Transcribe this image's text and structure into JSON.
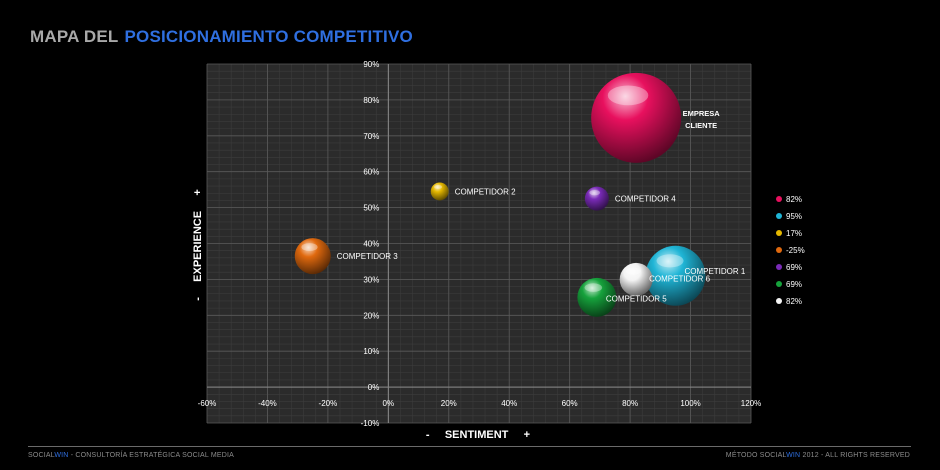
{
  "header": {
    "title_part1": "MAPA DEL",
    "title_part2": "POSICIONAMIENTO COMPETITIVO"
  },
  "footer": {
    "left_brand_a": "SOCIAL",
    "left_brand_b": "WIN",
    "left_text": " - CONSULTORÍA ESTRATÉGICA SOCIAL MEDIA",
    "right_text": "MÉTODO ",
    "right_brand_a": "SOCIAL",
    "right_brand_b": "WIN",
    "right_suffix": " 2012 - ALL RIGHTS RESERVED"
  },
  "chart_data": {
    "type": "scatter",
    "xlabel": "-     SENTIMENT     +",
    "ylabel": "-     EXPERIENCE     +",
    "xlim": [
      -60,
      120
    ],
    "ylim": [
      -10,
      90
    ],
    "x_ticks": [
      -60,
      -40,
      -20,
      0,
      20,
      40,
      60,
      80,
      100,
      120
    ],
    "y_ticks": [
      -10,
      0,
      10,
      20,
      30,
      40,
      50,
      60,
      70,
      80,
      90
    ],
    "x_tick_labels": [
      "-60%",
      "-40%",
      "-20%",
      "0%",
      "20%",
      "40%",
      "60%",
      "80%",
      "100%",
      "120%"
    ],
    "y_tick_labels": [
      "-10%",
      "0%",
      "10%",
      "20%",
      "30%",
      "40%",
      "50%",
      "60%",
      "70%",
      "80%",
      "90%"
    ],
    "grid": true,
    "legend_position": "right",
    "points": [
      {
        "label": "EMPRESA\nCLIENTE",
        "x": 82,
        "y": 75,
        "size": 3.0,
        "color": "#e8105e",
        "legend": "82%"
      },
      {
        "label": "COMPETIDOR 1",
        "x": 95,
        "y": 31,
        "size": 2.0,
        "color": "#1fb5d6",
        "legend": "95%"
      },
      {
        "label": "COMPETIDOR 2",
        "x": 17,
        "y": 54.5,
        "size": 0.6,
        "color": "#e5b800",
        "legend": "17%"
      },
      {
        "label": "COMPETIDOR 3",
        "x": -25,
        "y": 36.5,
        "size": 1.2,
        "color": "#e0690e",
        "legend": "-25%"
      },
      {
        "label": "COMPETIDOR 4",
        "x": 69,
        "y": 52.5,
        "size": 0.8,
        "color": "#7a2bb8",
        "legend": "69%"
      },
      {
        "label": "COMPETIDOR 5",
        "x": 69,
        "y": 25,
        "size": 1.3,
        "color": "#16a23c",
        "legend": "69%"
      },
      {
        "label": "COMPETIDOR 6",
        "x": 82,
        "y": 30,
        "size": 1.1,
        "color": "#f4f4f4",
        "legend": "82%"
      }
    ]
  }
}
